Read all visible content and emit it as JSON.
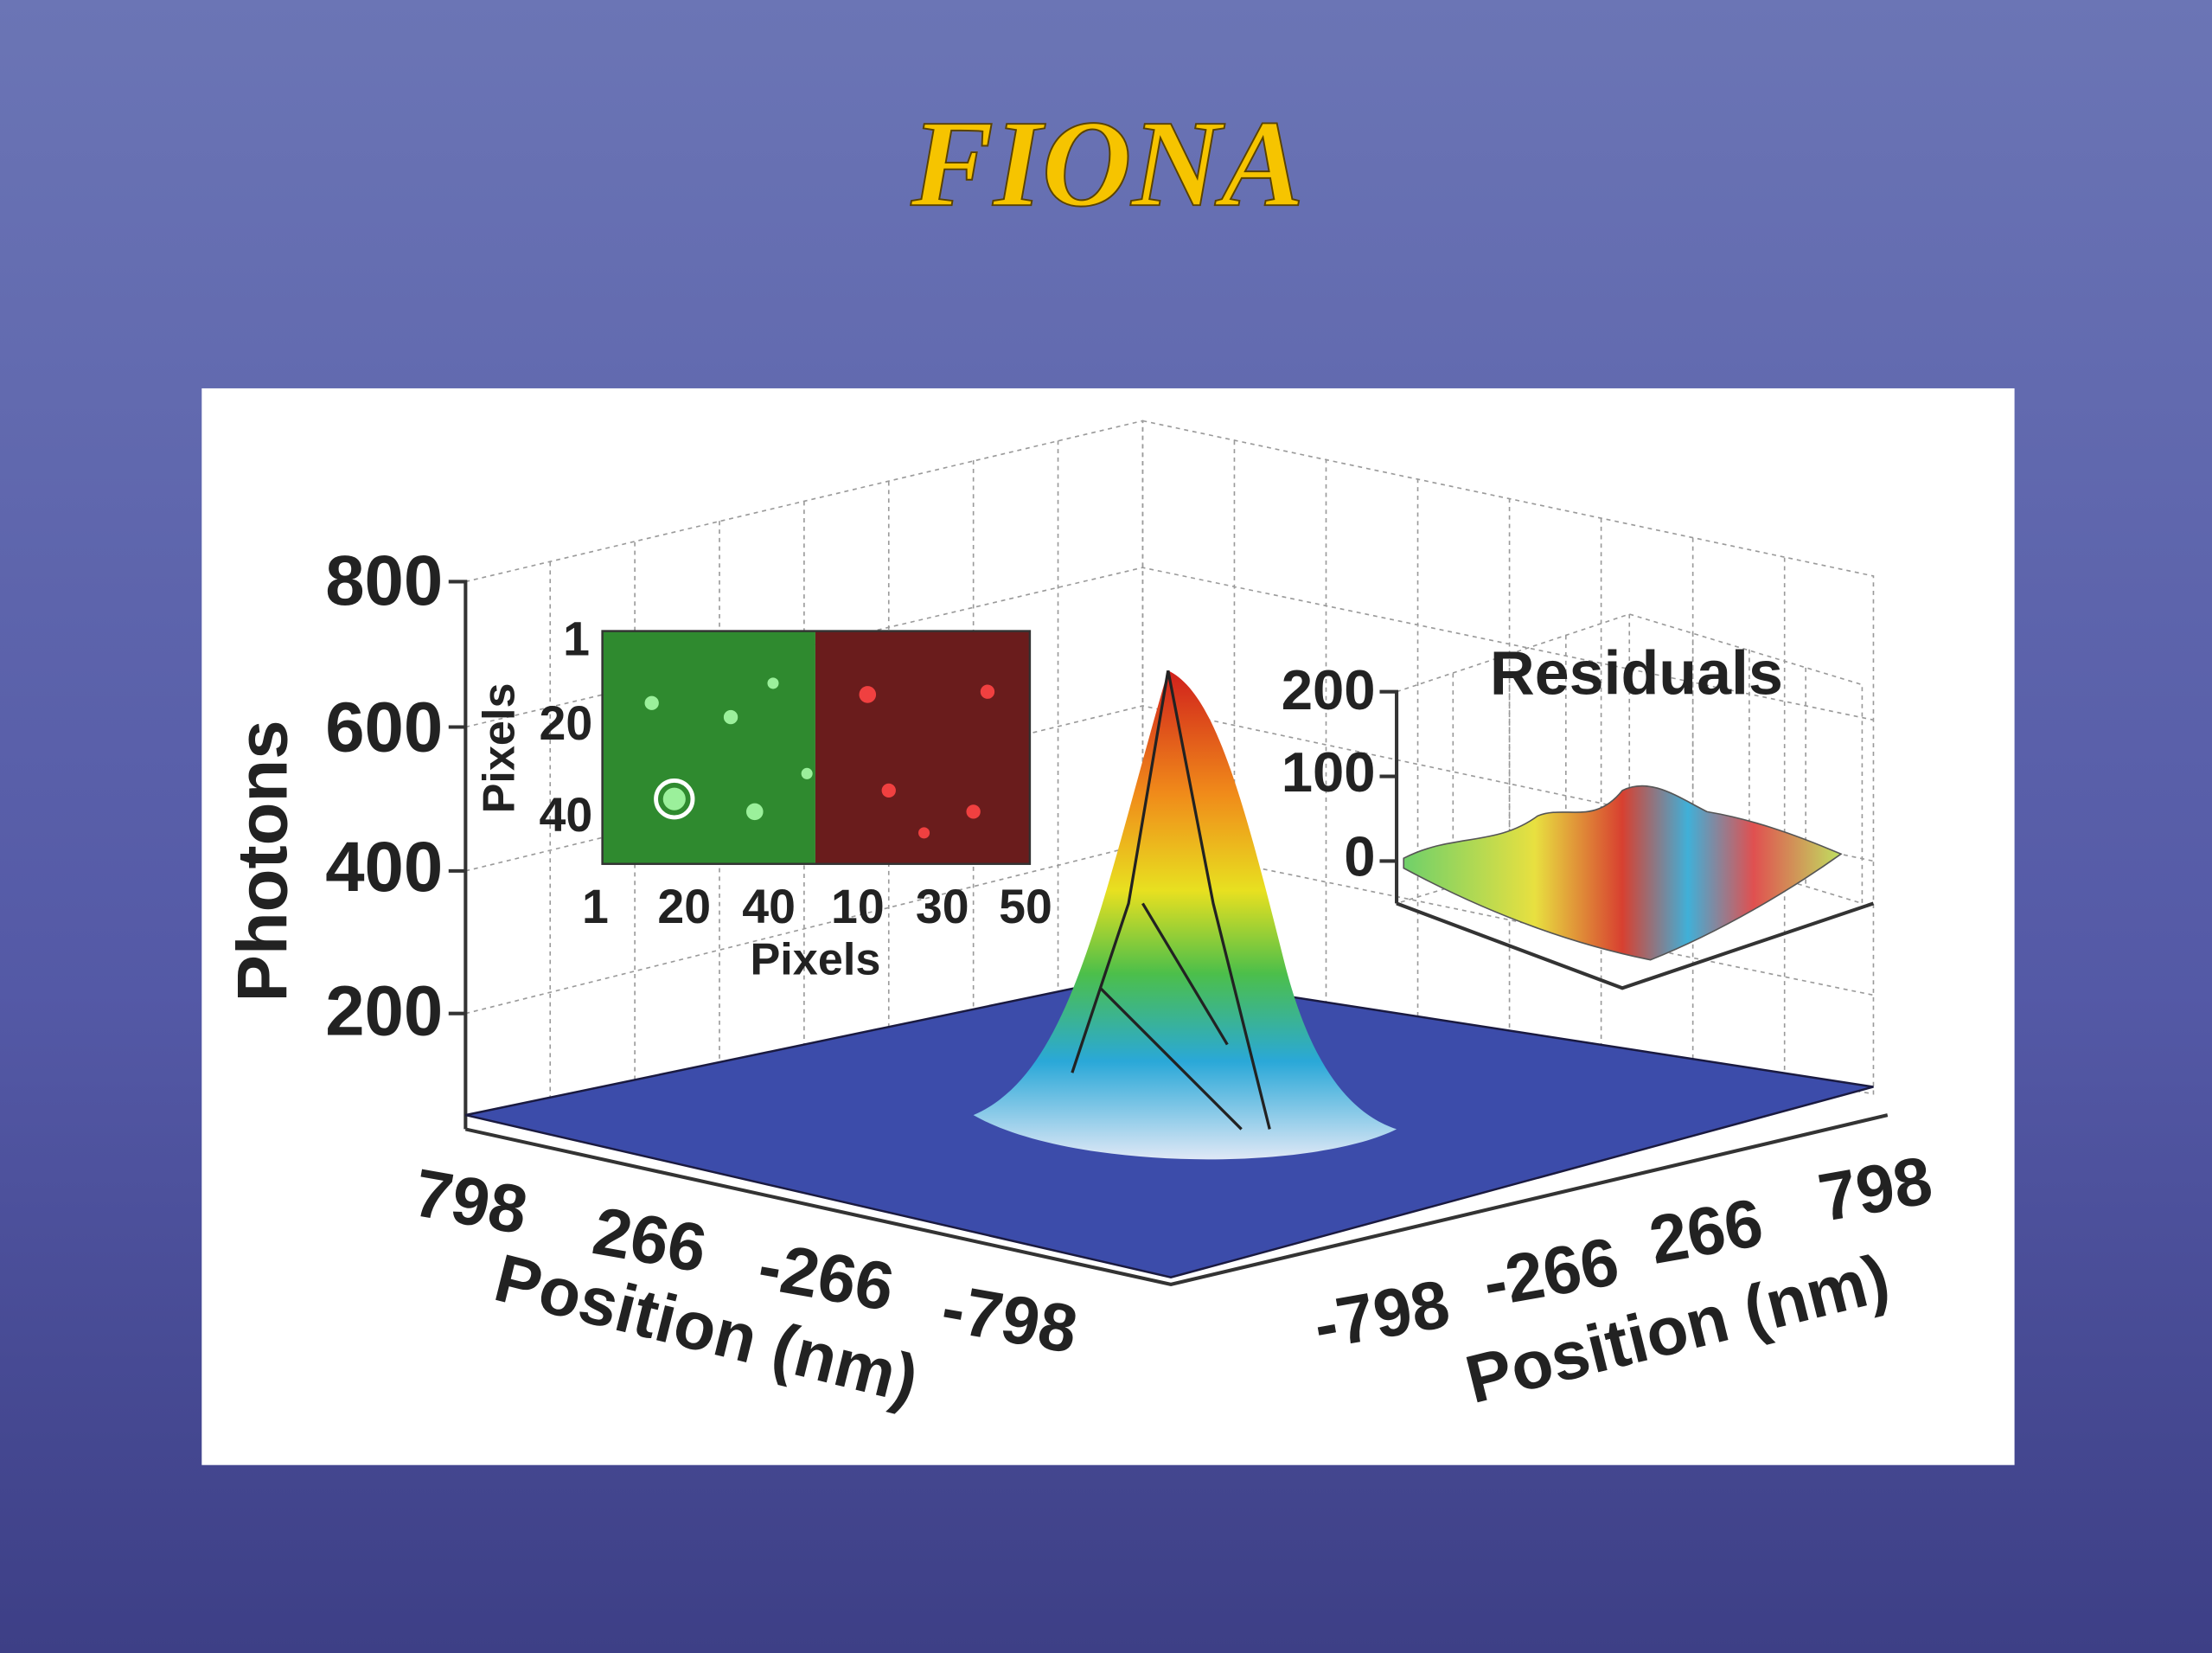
{
  "title": "FIONA",
  "figure": {
    "main_plot": {
      "z_label": "Photons",
      "z_ticks": [
        "800",
        "600",
        "400",
        "200"
      ],
      "x_label": "Position (nm)",
      "x_ticks": [
        "798",
        "266",
        "-266",
        "-798"
      ],
      "y_label": "Position (nm)",
      "y_ticks": [
        "-798",
        "-266",
        "266",
        "798"
      ]
    },
    "inset_image": {
      "y_label": "Pixels",
      "y_ticks": [
        "1",
        "20",
        "40"
      ],
      "x_label": "Pixels",
      "x_ticks": [
        "1",
        "20",
        "40",
        "10",
        "30",
        "50"
      ]
    },
    "residuals": {
      "title": "Residuals",
      "z_ticks": [
        "200",
        "100",
        "0"
      ]
    }
  }
}
